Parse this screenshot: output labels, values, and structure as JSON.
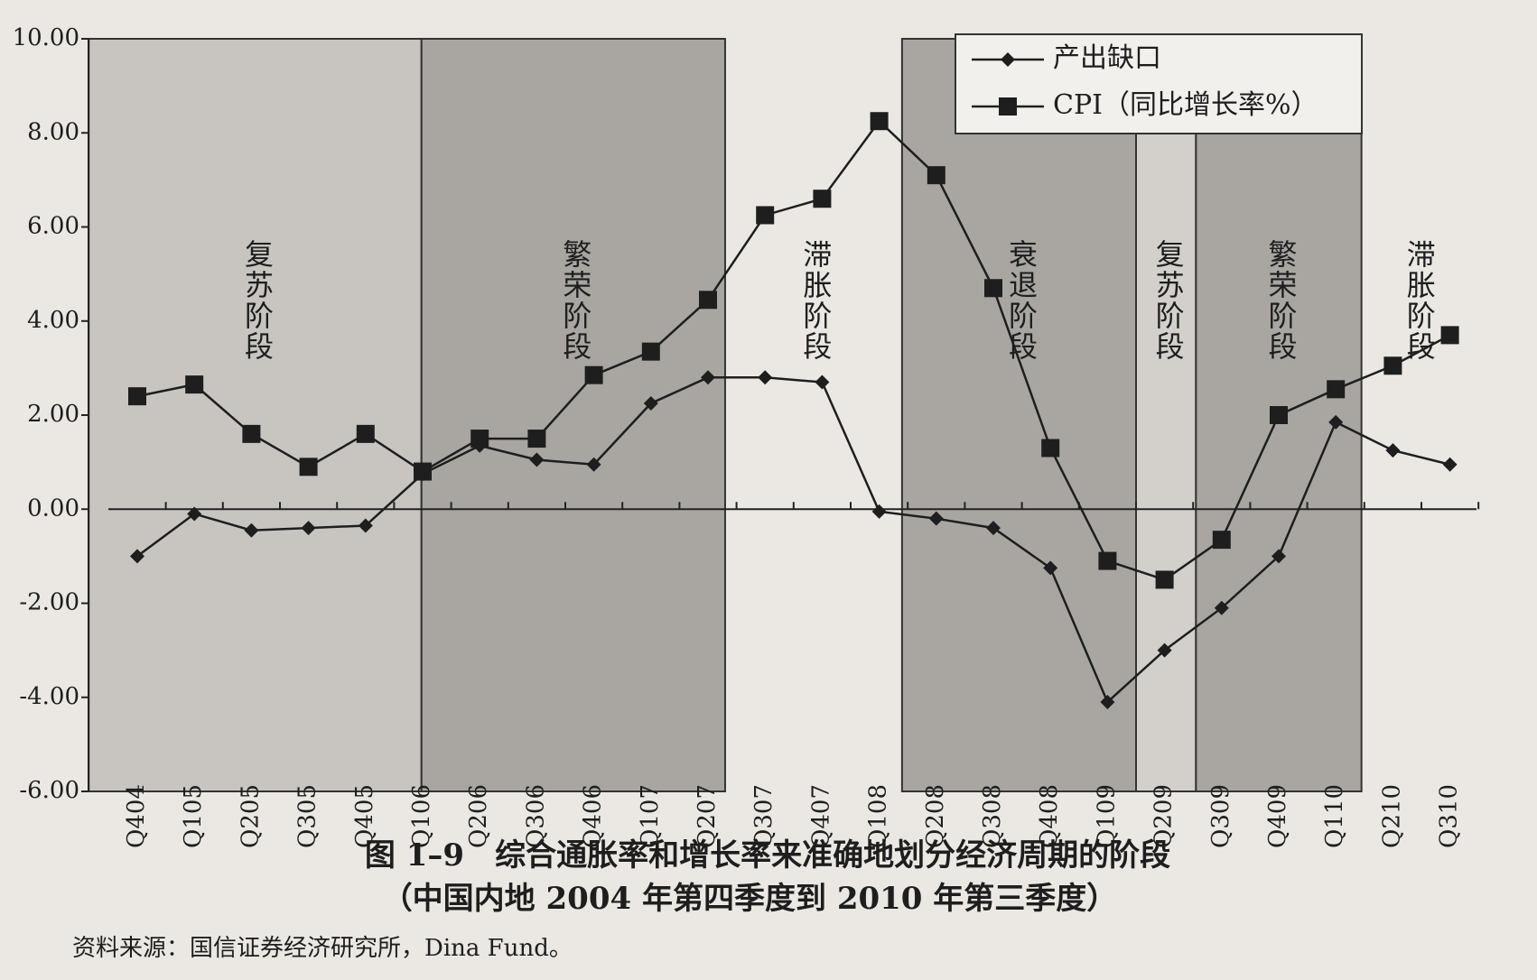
{
  "chart_data": {
    "type": "line",
    "title": "图 1–9　综合通胀率和增长率来准确地划分经济周期的阶段",
    "subtitle": "（中国内地 2004 年第四季度到 2010 年第三季度）",
    "source": "资料来源：国信证券经济研究所，Dina Fund。",
    "categories": [
      "Q404",
      "Q105",
      "Q205",
      "Q305",
      "Q405",
      "Q106",
      "Q206",
      "Q306",
      "Q406",
      "Q107",
      "Q207",
      "Q307",
      "Q407",
      "Q108",
      "Q208",
      "Q308",
      "Q408",
      "Q109",
      "Q209",
      "Q309",
      "Q409",
      "Q110",
      "Q210",
      "Q310"
    ],
    "series": [
      {
        "name": "产出缺口",
        "color": "#1e1e1e",
        "marker": "diamond",
        "values": [
          -1.0,
          -0.1,
          -0.45,
          -0.4,
          -0.35,
          0.75,
          1.35,
          1.05,
          0.95,
          2.25,
          2.8,
          2.8,
          2.7,
          -0.05,
          -0.2,
          -0.4,
          -1.25,
          -4.1,
          -3.0,
          -2.1,
          -1.0,
          1.85,
          1.25,
          0.95
        ]
      },
      {
        "name": "CPI（同比增长率%）",
        "color": "#1e1e1e",
        "marker": "square",
        "values": [
          2.4,
          2.65,
          1.6,
          0.9,
          1.6,
          0.8,
          1.5,
          1.5,
          2.85,
          3.35,
          4.45,
          6.25,
          6.6,
          8.25,
          7.1,
          4.7,
          1.3,
          -1.1,
          -1.5,
          -0.65,
          2.0,
          2.55,
          3.05,
          3.7
        ]
      }
    ],
    "phases": [
      {
        "label": "复苏阶段"
      },
      {
        "label": "繁荣阶段"
      },
      {
        "label": "滞胀阶段"
      },
      {
        "label": "衰退阶段"
      },
      {
        "label": "复苏阶段"
      },
      {
        "label": "繁荣阶段"
      },
      {
        "label": "滞胀阶段"
      }
    ],
    "ylim": [
      -6,
      10
    ],
    "yticks": [
      {
        "value": -6,
        "label": "-6.00"
      },
      {
        "value": -4,
        "label": "-4.00"
      },
      {
        "value": -2,
        "label": "-2.00"
      },
      {
        "value": 0,
        "label": "0.00"
      },
      {
        "value": 2,
        "label": "2.00"
      },
      {
        "value": 4,
        "label": "4.00"
      },
      {
        "value": 6,
        "label": "6.00"
      },
      {
        "value": 8,
        "label": "8.00"
      },
      {
        "value": 10,
        "label": "10.00"
      }
    ],
    "legend": "upper right"
  }
}
